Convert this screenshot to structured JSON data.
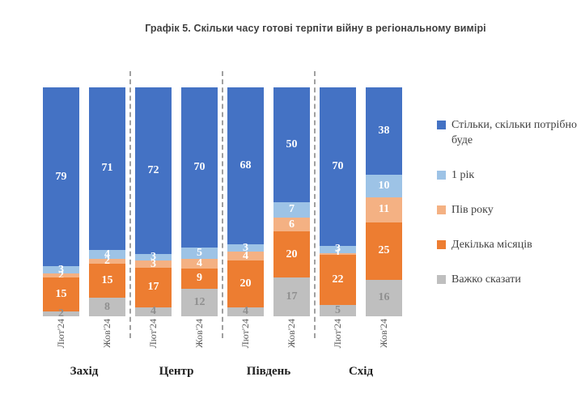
{
  "title": "Графік 5. Скільки часу готові терпіти війну в регіональному вимірі",
  "chart_data": {
    "type": "bar",
    "subtype": "stacked-100-percent",
    "orientation": "vertical",
    "grid": false,
    "y_axis_visible": false,
    "ylim": [
      0,
      100
    ],
    "legend_position": "right",
    "stack_order_top_to_bottom": [
      "Стільки, скільки потрібно буде",
      "1 рік",
      "Пів року",
      "Декілька місяців",
      "Важко сказати"
    ],
    "legend": [
      {
        "label": "Стільки, скільки потрібно буде",
        "color": "#4472C4"
      },
      {
        "label": "1 рік",
        "color": "#9DC3E6"
      },
      {
        "label": "Пів року",
        "color": "#F4B183"
      },
      {
        "label": "Декілька місяців",
        "color": "#ED7D31"
      },
      {
        "label": "Важко сказати",
        "color": "#BFBFBF"
      }
    ],
    "value_label_colors": {
      "default": "#FFFFFF",
      "hard_to_say": "#8F8F8F"
    },
    "groups": [
      {
        "label": "Захід",
        "bars": [
          {
            "label": "Лют'24",
            "values": [
              79,
              3,
              2,
              15,
              2
            ]
          },
          {
            "label": "Жов'24",
            "values": [
              71,
              4,
              2,
              15,
              8
            ]
          }
        ]
      },
      {
        "label": "Центр",
        "bars": [
          {
            "label": "Лют'24",
            "values": [
              72,
              3,
              3,
              17,
              4
            ]
          },
          {
            "label": "Жов'24",
            "values": [
              70,
              5,
              4,
              9,
              12
            ]
          }
        ]
      },
      {
        "label": "Південь",
        "bars": [
          {
            "label": "Лют'24",
            "values": [
              68,
              3,
              4,
              20,
              4
            ]
          },
          {
            "label": "Жов'24",
            "values": [
              50,
              7,
              6,
              20,
              17
            ]
          }
        ]
      },
      {
        "label": "Схід",
        "bars": [
          {
            "label": "Лют'24",
            "values": [
              70,
              3,
              1,
              22,
              5
            ]
          },
          {
            "label": "Жов'24",
            "values": [
              38,
              10,
              11,
              25,
              16
            ]
          }
        ]
      }
    ]
  }
}
